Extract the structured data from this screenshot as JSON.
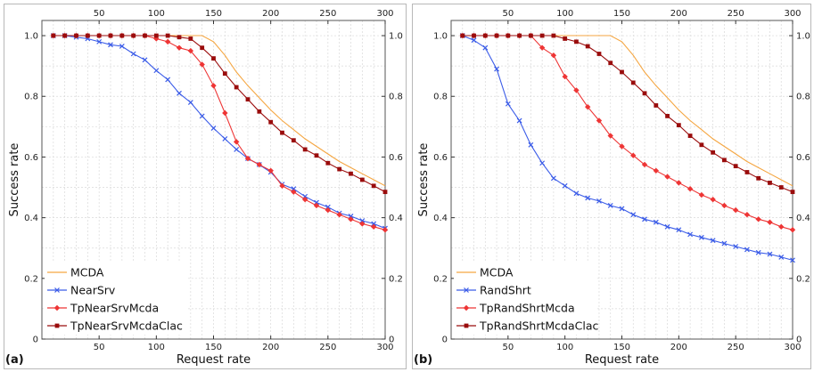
{
  "chart_data": [
    {
      "type": "line",
      "panel_label": "(a)",
      "xlabel": "Request rate",
      "ylabel": "Success rate",
      "xlim": [
        0,
        300
      ],
      "ylim": [
        0,
        1.05
      ],
      "xticks": [
        50,
        100,
        150,
        200,
        250,
        300
      ],
      "yticks": [
        0,
        0.2,
        0.4,
        0.6,
        0.8,
        1.0
      ],
      "xtick_labels": [
        "50",
        "100",
        "150",
        "200",
        "250",
        "300"
      ],
      "ytick_labels": [
        "0",
        "0.2",
        "0.4",
        "0.6",
        "0.8",
        "1.0"
      ],
      "grid": true,
      "legend_position": "bottom-left",
      "series": [
        {
          "name": "MCDA",
          "color": "#f5a641",
          "marker": "none",
          "x": [
            10,
            20,
            30,
            40,
            50,
            60,
            70,
            80,
            90,
            100,
            110,
            120,
            130,
            140,
            150,
            160,
            170,
            180,
            190,
            200,
            210,
            220,
            230,
            240,
            250,
            260,
            270,
            280,
            290,
            300
          ],
          "y": [
            1.0,
            1.0,
            1.0,
            1.0,
            1.0,
            1.0,
            1.0,
            1.0,
            1.0,
            1.0,
            1.0,
            1.0,
            1.0,
            1.0,
            0.98,
            0.935,
            0.88,
            0.835,
            0.795,
            0.755,
            0.72,
            0.69,
            0.66,
            0.635,
            0.61,
            0.585,
            0.565,
            0.545,
            0.525,
            0.505
          ]
        },
        {
          "name": "NearSrv",
          "color": "#3b5ce8",
          "marker": "x",
          "x": [
            10,
            20,
            30,
            40,
            50,
            60,
            70,
            80,
            90,
            100,
            110,
            120,
            130,
            140,
            150,
            160,
            170,
            180,
            190,
            200,
            210,
            220,
            230,
            240,
            250,
            260,
            270,
            280,
            290,
            300
          ],
          "y": [
            1.0,
            1.0,
            0.995,
            0.99,
            0.98,
            0.97,
            0.965,
            0.94,
            0.92,
            0.885,
            0.855,
            0.81,
            0.78,
            0.735,
            0.695,
            0.66,
            0.625,
            0.595,
            0.575,
            0.55,
            0.51,
            0.495,
            0.47,
            0.45,
            0.435,
            0.415,
            0.405,
            0.39,
            0.38,
            0.365
          ]
        },
        {
          "name": "TpNearSrvMcda",
          "color": "#ee3535",
          "marker": "diamond",
          "x": [
            10,
            20,
            30,
            40,
            50,
            60,
            70,
            80,
            90,
            100,
            110,
            120,
            130,
            140,
            150,
            160,
            170,
            180,
            190,
            200,
            210,
            220,
            230,
            240,
            250,
            260,
            270,
            280,
            290,
            300
          ],
          "y": [
            1.0,
            1.0,
            1.0,
            1.0,
            1.0,
            1.0,
            1.0,
            1.0,
            1.0,
            0.99,
            0.98,
            0.96,
            0.95,
            0.905,
            0.835,
            0.745,
            0.65,
            0.595,
            0.575,
            0.555,
            0.505,
            0.485,
            0.46,
            0.44,
            0.425,
            0.41,
            0.395,
            0.38,
            0.37,
            0.36
          ]
        },
        {
          "name": "TpNearSrvMcdaClac",
          "color": "#9a0c0c",
          "marker": "square",
          "x": [
            10,
            20,
            30,
            40,
            50,
            60,
            70,
            80,
            90,
            100,
            110,
            120,
            130,
            140,
            150,
            160,
            170,
            180,
            190,
            200,
            210,
            220,
            230,
            240,
            250,
            260,
            270,
            280,
            290,
            300
          ],
          "y": [
            1.0,
            1.0,
            1.0,
            1.0,
            1.0,
            1.0,
            1.0,
            1.0,
            1.0,
            1.0,
            1.0,
            0.995,
            0.99,
            0.96,
            0.925,
            0.875,
            0.83,
            0.79,
            0.75,
            0.715,
            0.68,
            0.655,
            0.625,
            0.605,
            0.58,
            0.56,
            0.545,
            0.525,
            0.505,
            0.485
          ]
        }
      ]
    },
    {
      "type": "line",
      "panel_label": "(b)",
      "xlabel": "Request rate",
      "ylabel": "Success rate",
      "xlim": [
        0,
        300
      ],
      "ylim": [
        0,
        1.05
      ],
      "xticks": [
        50,
        100,
        150,
        200,
        250,
        300
      ],
      "yticks": [
        0,
        0.2,
        0.4,
        0.6,
        0.8,
        1.0
      ],
      "xtick_labels": [
        "50",
        "100",
        "150",
        "200",
        "250",
        "300"
      ],
      "ytick_labels": [
        "0",
        "0.2",
        "0.4",
        "0.6",
        "0.8",
        "1.0"
      ],
      "grid": true,
      "legend_position": "bottom-left",
      "series": [
        {
          "name": "MCDA",
          "color": "#f5a641",
          "marker": "none",
          "x": [
            10,
            20,
            30,
            40,
            50,
            60,
            70,
            80,
            90,
            100,
            110,
            120,
            130,
            140,
            150,
            160,
            170,
            180,
            190,
            200,
            210,
            220,
            230,
            240,
            250,
            260,
            270,
            280,
            290,
            300
          ],
          "y": [
            1.0,
            1.0,
            1.0,
            1.0,
            1.0,
            1.0,
            1.0,
            1.0,
            1.0,
            1.0,
            1.0,
            1.0,
            1.0,
            1.0,
            0.98,
            0.935,
            0.88,
            0.835,
            0.795,
            0.755,
            0.72,
            0.69,
            0.66,
            0.635,
            0.61,
            0.585,
            0.565,
            0.545,
            0.525,
            0.505
          ]
        },
        {
          "name": "RandShrt",
          "color": "#3b5ce8",
          "marker": "x",
          "x": [
            10,
            20,
            30,
            40,
            50,
            60,
            70,
            80,
            90,
            100,
            110,
            120,
            130,
            140,
            150,
            160,
            170,
            180,
            190,
            200,
            210,
            220,
            230,
            240,
            250,
            260,
            270,
            280,
            290,
            300
          ],
          "y": [
            1.0,
            0.985,
            0.96,
            0.89,
            0.775,
            0.72,
            0.64,
            0.58,
            0.53,
            0.505,
            0.48,
            0.465,
            0.455,
            0.44,
            0.43,
            0.41,
            0.395,
            0.385,
            0.37,
            0.36,
            0.345,
            0.335,
            0.325,
            0.315,
            0.305,
            0.295,
            0.285,
            0.28,
            0.27,
            0.26
          ]
        },
        {
          "name": "TpRandShrtMcda",
          "color": "#ee3535",
          "marker": "diamond",
          "x": [
            10,
            20,
            30,
            40,
            50,
            60,
            70,
            80,
            90,
            100,
            110,
            120,
            130,
            140,
            150,
            160,
            170,
            180,
            190,
            200,
            210,
            220,
            230,
            240,
            250,
            260,
            270,
            280,
            290,
            300
          ],
          "y": [
            1.0,
            1.0,
            1.0,
            1.0,
            1.0,
            1.0,
            1.0,
            0.96,
            0.935,
            0.865,
            0.82,
            0.765,
            0.72,
            0.67,
            0.635,
            0.605,
            0.575,
            0.555,
            0.535,
            0.515,
            0.495,
            0.475,
            0.46,
            0.44,
            0.425,
            0.41,
            0.395,
            0.385,
            0.37,
            0.36
          ]
        },
        {
          "name": "TpRandShrtMcdaClac",
          "color": "#9a0c0c",
          "marker": "square",
          "x": [
            10,
            20,
            30,
            40,
            50,
            60,
            70,
            80,
            90,
            100,
            110,
            120,
            130,
            140,
            150,
            160,
            170,
            180,
            190,
            200,
            210,
            220,
            230,
            240,
            250,
            260,
            270,
            280,
            290,
            300
          ],
          "y": [
            1.0,
            1.0,
            1.0,
            1.0,
            1.0,
            1.0,
            1.0,
            1.0,
            1.0,
            0.99,
            0.98,
            0.965,
            0.94,
            0.91,
            0.88,
            0.845,
            0.81,
            0.77,
            0.735,
            0.705,
            0.67,
            0.64,
            0.615,
            0.59,
            0.57,
            0.55,
            0.53,
            0.515,
            0.5,
            0.485
          ]
        }
      ]
    }
  ]
}
